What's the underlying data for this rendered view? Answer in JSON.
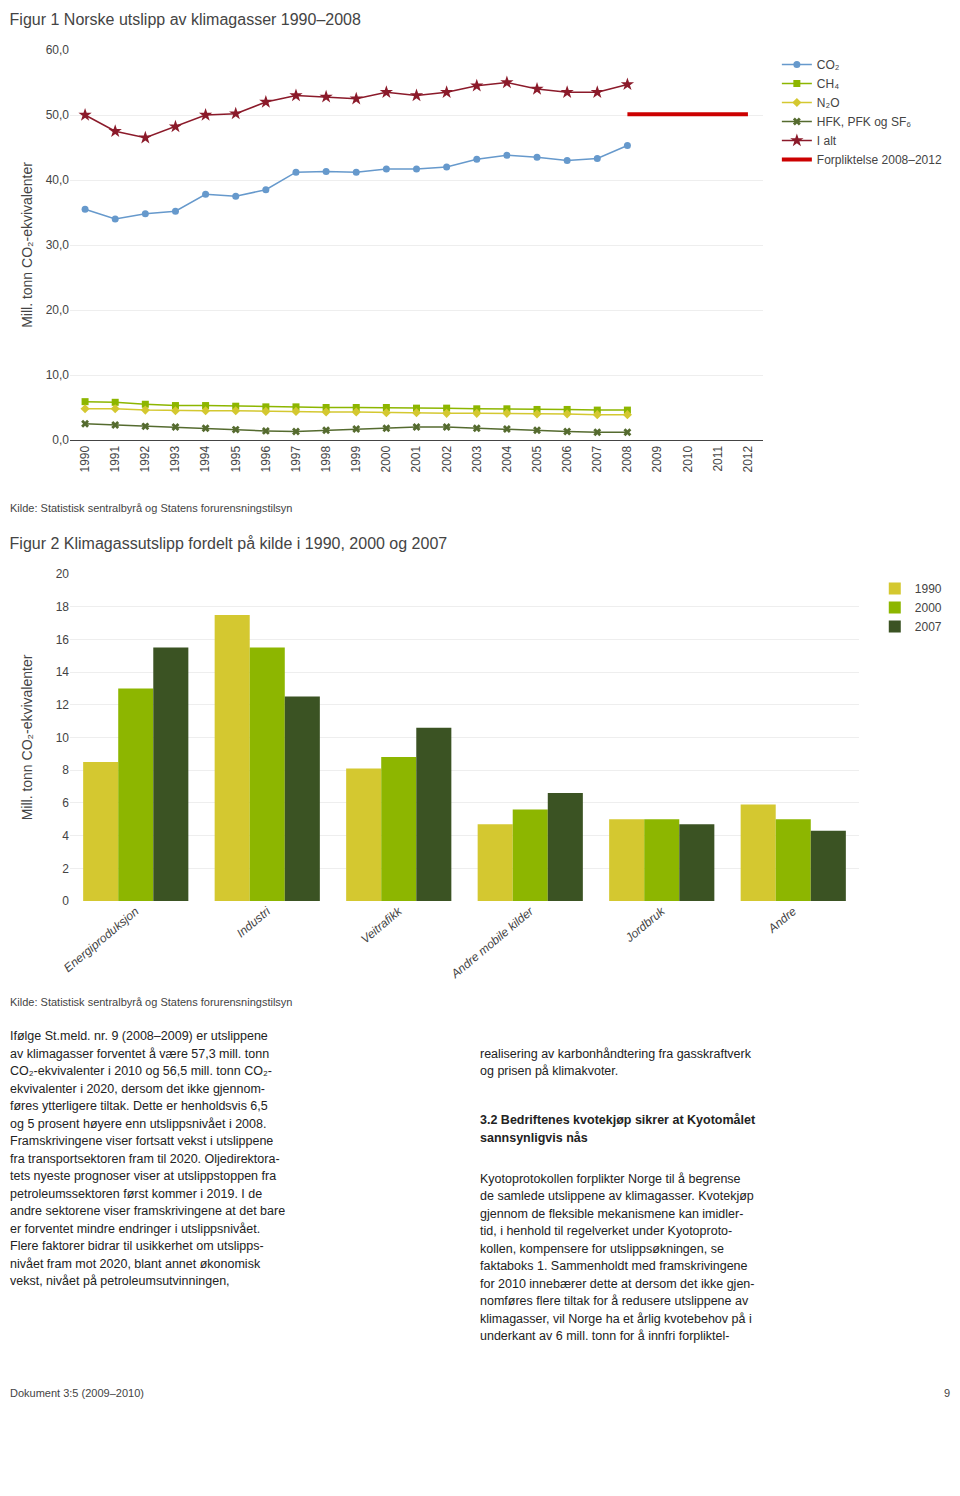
{
  "chart_data": [
    {
      "type": "line",
      "title": "Figur 1 Norske utslipp av klimagasser 1990–2008",
      "y_label": "Mill. tonn CO₂-ekvivalenter",
      "annotations": [
        "Kilde: Statistisk sentralbyrå og Statens forurensningstilsyn"
      ],
      "series": [
        {
          "name": "CO₂",
          "color": "#6699CC",
          "marker": "circle",
          "x": [
            1990,
            1991,
            1992,
            1993,
            1994,
            1995,
            1996,
            1997,
            1998,
            1999,
            2000,
            2001,
            2002,
            2003,
            2004,
            2005,
            2006,
            2007,
            2008
          ],
          "values": [
            35.5,
            34.0,
            34.8,
            35.2,
            37.8,
            37.5,
            38.5,
            41.2,
            41.3,
            41.2,
            41.7,
            41.7,
            42.0,
            43.2,
            43.8,
            43.5,
            43.0,
            43.3,
            45.3
          ]
        },
        {
          "name": "CH₄",
          "color": "#8DB600",
          "marker": "square",
          "x": [
            1990,
            1991,
            1992,
            1993,
            1994,
            1995,
            1996,
            1997,
            1998,
            1999,
            2000,
            2001,
            2002,
            2003,
            2004,
            2005,
            2006,
            2007,
            2008
          ],
          "values": [
            5.9,
            5.8,
            5.5,
            5.3,
            5.3,
            5.2,
            5.1,
            5.1,
            5.0,
            5.0,
            5.0,
            4.9,
            4.9,
            4.8,
            4.8,
            4.7,
            4.7,
            4.6,
            4.6
          ]
        },
        {
          "name": "N₂O",
          "color": "#D4C830",
          "marker": "diamond",
          "x": [
            1990,
            1991,
            1992,
            1993,
            1994,
            1995,
            1996,
            1997,
            1998,
            1999,
            2000,
            2001,
            2002,
            2003,
            2004,
            2005,
            2006,
            2007,
            2008
          ],
          "values": [
            4.8,
            4.8,
            4.6,
            4.5,
            4.5,
            4.5,
            4.4,
            4.4,
            4.3,
            4.3,
            4.2,
            4.2,
            4.1,
            4.1,
            4.1,
            4.0,
            4.0,
            3.9,
            3.9
          ]
        },
        {
          "name": "HFK, PFK og SF₆",
          "color": "#556B2F",
          "marker": "x",
          "x": [
            1990,
            1991,
            1992,
            1993,
            1994,
            1995,
            1996,
            1997,
            1998,
            1999,
            2000,
            2001,
            2002,
            2003,
            2004,
            2005,
            2006,
            2007,
            2008
          ],
          "values": [
            2.5,
            2.3,
            2.1,
            2.0,
            1.8,
            1.6,
            1.4,
            1.3,
            1.5,
            1.7,
            1.8,
            2.0,
            2.0,
            1.8,
            1.7,
            1.5,
            1.3,
            1.2,
            1.2
          ]
        },
        {
          "name": "I alt",
          "color": "#8B1A2A",
          "marker": "star",
          "x": [
            1990,
            1991,
            1992,
            1993,
            1994,
            1995,
            1996,
            1997,
            1998,
            1999,
            2000,
            2001,
            2002,
            2003,
            2004,
            2005,
            2006,
            2007,
            2008
          ],
          "values": [
            50.0,
            47.5,
            46.5,
            48.2,
            50.0,
            50.2,
            52.0,
            53.0,
            52.8,
            52.5,
            53.5,
            53.0,
            53.5,
            54.5,
            55.0,
            54.0,
            53.5,
            53.5,
            54.7
          ]
        },
        {
          "name": "Forpliktelse 2008–2012",
          "color": "#CC0000",
          "x": [
            2008,
            2012
          ],
          "values": [
            50.1,
            50.1
          ]
        }
      ],
      "xlim": [
        1989.5,
        2012.5
      ],
      "xticks": [
        1990,
        1991,
        1992,
        1993,
        1994,
        1995,
        1996,
        1997,
        1998,
        1999,
        2000,
        2001,
        2002,
        2003,
        2004,
        2005,
        2006,
        2007,
        2008,
        2009,
        2010,
        2011,
        2012
      ],
      "ylim": [
        0,
        60
      ],
      "yticks": [
        {
          "value": 0,
          "label": "0,0"
        },
        {
          "value": 10,
          "label": "10,0"
        },
        {
          "value": 20,
          "label": "20,0"
        },
        {
          "value": 30,
          "label": "30,0"
        },
        {
          "value": 40,
          "label": "40,0"
        },
        {
          "value": 50,
          "label": "50,0"
        },
        {
          "value": 60,
          "label": "60,0"
        }
      ],
      "grid": "y",
      "legend": "right"
    },
    {
      "type": "bar",
      "title": "Figur 2 Klimagassutslipp fordelt på kilde i 1990, 2000 og 2007",
      "y_label": "Mill. tonn CO₂-ekvivalenter",
      "annotations": [
        "Kilde: Statistisk sentralbyrå og Statens forurensningstilsyn"
      ],
      "categories": [
        "Energiproduksjon",
        "Industri",
        "Veitrafikk",
        "Andre mobile kilder",
        "Jordbruk",
        "Andre"
      ],
      "series": [
        {
          "name": "1990",
          "color": "#D4C830",
          "values": [
            8.5,
            17.5,
            8.1,
            4.7,
            5.0,
            5.9
          ]
        },
        {
          "name": "2000",
          "color": "#8DB600",
          "values": [
            13.0,
            15.5,
            8.8,
            5.6,
            5.0,
            5.0
          ]
        },
        {
          "name": "2007",
          "color": "#3B5323",
          "values": [
            15.5,
            12.5,
            10.6,
            6.6,
            4.7,
            4.3
          ]
        }
      ],
      "ylim": [
        0,
        20
      ],
      "yticks": [
        0,
        2,
        4,
        6,
        8,
        10,
        12,
        14,
        16,
        18,
        20
      ],
      "grid": "y",
      "legend": "right"
    }
  ],
  "body_text_left": "Ifølge St.meld. nr. 9 (2008–2009) er utslippene\nav klimagasser forventet å være 57,3 mill. tonn\nCO₂-ekvivalenter i 2010 og 56,5 mill. tonn CO₂-\nekvivalenter i 2020, dersom det ikke gjennom-\nføres ytterligere tiltak. Dette er henholdsvis 6,5\nog 5 prosent høyere enn utslippsnivået i 2008.\nFramskrivingene viser fortsatt vekst i utslippene\nfra transportsektoren fram til 2020. Oljedirektora-\ntets nyeste prognoser viser at utslippstoppen fra\npetroleumssektoren først kommer i 2019. I de\nandre sektorene viser framskrivingene at det bare\ner forventet mindre endringer i utslippsnivået.\nFlere faktorer bidrar til usikkerhet om utslipps-\nnivået fram mot 2020, blant annet økonomisk\nvekst, nivået på petroleumsutvinningen,",
  "body_text_right_intro": "realisering av karbonhåndtering fra gasskraftverk\nog prisen på klimakvoter.",
  "section_title": "3.2 Bedriftenes kvotekjøp sikrer at Kyotomålet\nsannsynligvis nås",
  "body_text_right": "Kyotoprotokollen forplikter Norge til å begrense\nde samlede utslippene av klimagasser. Kvotekjøp\ngjennom de fleksible mekanismene kan imidler-\ntid, i henhold til regelverket under Kyotoproto-\nkollen, kompensere for utslippsøkningen, se\nfaktaboks 1. Sammenholdt med framskrivingene\nfor 2010 innebærer dette at dersom det ikke gjen-\nnomføres flere tiltak for å redusere utslippene av\nklimagasser, vil Norge ha et årlig kvotebehov på i\nunderkant av 6 mill. tonn for å innfri forpliktel-",
  "footer_text": "Dokument 3:5 (2009–2010)",
  "footer_page": "9"
}
